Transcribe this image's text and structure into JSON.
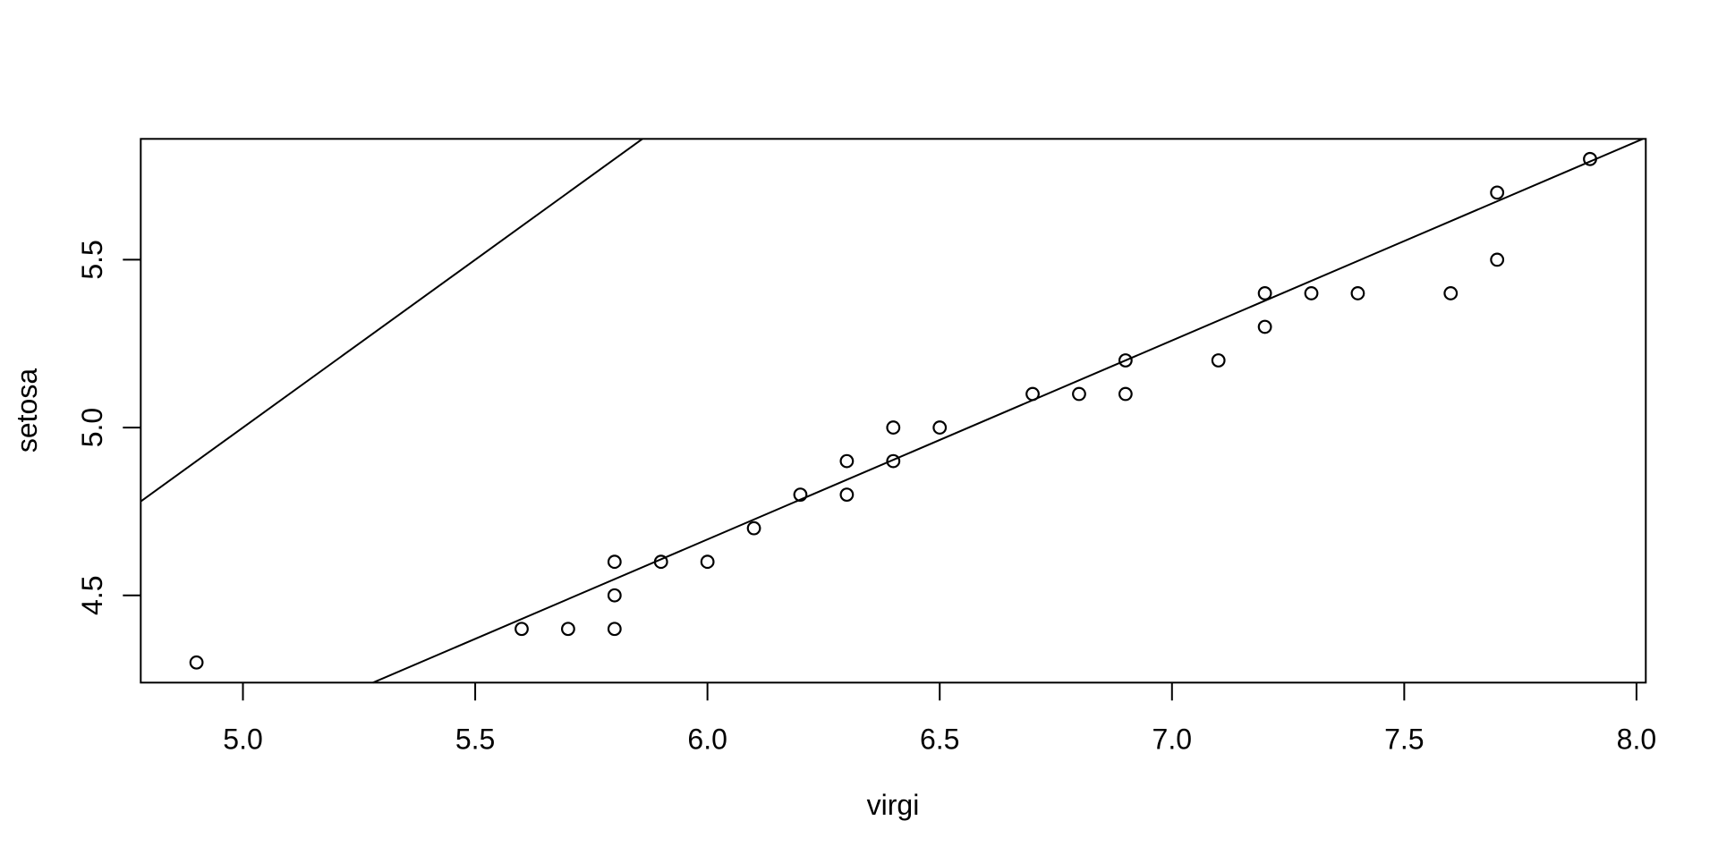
{
  "chart_data": {
    "type": "scatter",
    "description": "R base-graphics Q-Q plot of two samples with open circle markers and two reference lines",
    "xlabel": "virgi",
    "ylabel": "setosa",
    "xlim": [
      4.78,
      8.02
    ],
    "ylim": [
      4.24,
      5.86
    ],
    "x_ticks": {
      "values": [
        5.0,
        5.5,
        6.0,
        6.5,
        7.0,
        7.5,
        8.0
      ],
      "labels": [
        "5.0",
        "5.5",
        "6.0",
        "6.5",
        "7.0",
        "7.5",
        "8.0"
      ]
    },
    "y_ticks": {
      "values": [
        4.5,
        5.0,
        5.5
      ],
      "labels": [
        "4.5",
        "5.0",
        "5.5"
      ]
    },
    "points": [
      [
        4.9,
        4.3
      ],
      [
        5.6,
        4.4
      ],
      [
        5.7,
        4.4
      ],
      [
        5.8,
        4.4
      ],
      [
        5.8,
        4.5
      ],
      [
        5.8,
        4.6
      ],
      [
        5.9,
        4.6
      ],
      [
        6.0,
        4.6
      ],
      [
        6.1,
        4.7
      ],
      [
        6.2,
        4.8
      ],
      [
        6.3,
        4.8
      ],
      [
        6.3,
        4.9
      ],
      [
        6.4,
        4.9
      ],
      [
        6.4,
        5.0
      ],
      [
        6.5,
        5.0
      ],
      [
        6.7,
        5.1
      ],
      [
        6.8,
        5.1
      ],
      [
        6.9,
        5.1
      ],
      [
        6.9,
        5.2
      ],
      [
        7.1,
        5.2
      ],
      [
        7.2,
        5.3
      ],
      [
        7.2,
        5.4
      ],
      [
        7.3,
        5.4
      ],
      [
        7.4,
        5.4
      ],
      [
        7.6,
        5.4
      ],
      [
        7.7,
        5.5
      ],
      [
        7.7,
        5.7
      ],
      [
        7.9,
        5.8
      ]
    ],
    "lines": [
      {
        "name": "identity-line",
        "slope": 1.0,
        "intercept": 0.0
      },
      {
        "name": "quartile-line",
        "slope": 0.5926,
        "intercept": 1.1111
      }
    ],
    "marker": "open-circle",
    "grid": false,
    "legend": null,
    "colors": {
      "foreground": "#000000",
      "background": "#ffffff"
    }
  }
}
